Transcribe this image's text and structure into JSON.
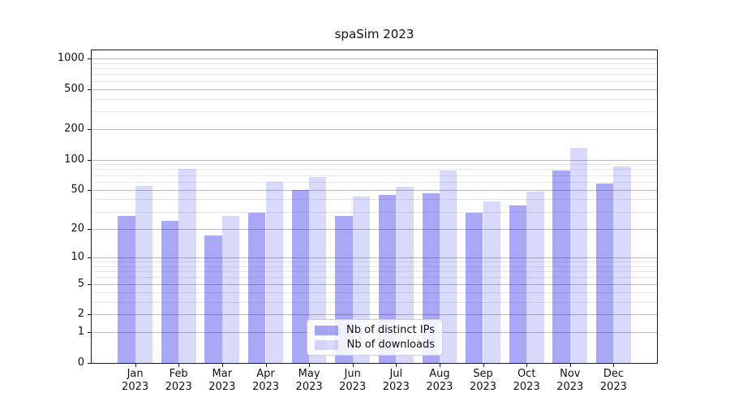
{
  "chart_data": {
    "type": "bar",
    "title": "spaSim 2023",
    "xlabel": "",
    "ylabel": "",
    "categories": [
      "Jan",
      "Feb",
      "Mar",
      "Apr",
      "May",
      "Jun",
      "Jul",
      "Aug",
      "Sep",
      "Oct",
      "Nov",
      "Dec"
    ],
    "x_tick_year": "2023",
    "series": [
      {
        "name": "Nb of distinct IPs",
        "color": "rgba(0,0,230,0.34)",
        "values": [
          27,
          24,
          17,
          29,
          50,
          27,
          44,
          46,
          29,
          35,
          78,
          58
        ]
      },
      {
        "name": "Nb of downloads",
        "color": "rgba(0,0,230,0.15)",
        "values": [
          55,
          80,
          27,
          60,
          67,
          43,
          54,
          78,
          38,
          48,
          130,
          85
        ]
      }
    ],
    "y_scale": "log(value+1)",
    "y_ticks": [
      0,
      1,
      2,
      5,
      10,
      20,
      50,
      100,
      200,
      500,
      1000
    ],
    "y_minor_ticks": [
      3,
      4,
      6,
      7,
      8,
      9,
      30,
      40,
      60,
      70,
      80,
      90,
      300,
      400,
      600,
      700,
      800,
      900
    ],
    "ylim": [
      0,
      1200
    ],
    "grid": true,
    "legend_position": "lower center"
  },
  "colors": {
    "grid_major": "#bcbcbc",
    "grid_minor": "#e9e9e9",
    "spine": "#1a1a1a",
    "text": "#111111",
    "background": "#ffffff"
  }
}
